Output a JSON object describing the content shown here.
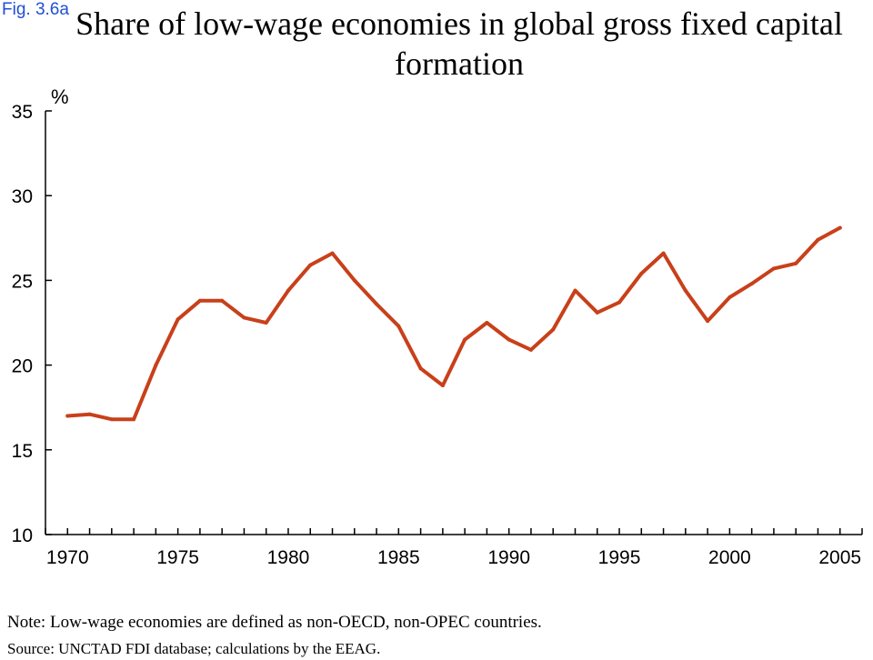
{
  "figure_label": "Fig. 3.6a",
  "note": "Note: Low-wage economies are defined as non-OECD, non-OPEC countries.",
  "source": "Source: UNCTAD FDI database; calculations by the EEAG.",
  "chart_data": {
    "type": "line",
    "title": "Share of low-wage economies in global gross fixed capital formation",
    "ylabel": "%",
    "xlabel": "",
    "ylim": [
      10,
      35
    ],
    "xlim": [
      1969,
      2006
    ],
    "yticks": [
      10,
      15,
      20,
      25,
      30,
      35
    ],
    "xticks": [
      1970,
      1975,
      1980,
      1985,
      1990,
      1995,
      2000,
      2005
    ],
    "grid": false,
    "color": "#c8401a",
    "x": [
      1970,
      1971,
      1972,
      1973,
      1974,
      1975,
      1976,
      1977,
      1978,
      1979,
      1980,
      1981,
      1982,
      1983,
      1984,
      1985,
      1986,
      1987,
      1988,
      1989,
      1990,
      1991,
      1992,
      1993,
      1994,
      1995,
      1996,
      1997,
      1998,
      1999,
      2000,
      2001,
      2002,
      2003,
      2004,
      2005
    ],
    "values": [
      17.0,
      17.1,
      16.8,
      16.8,
      20.0,
      22.7,
      23.8,
      23.8,
      22.8,
      22.5,
      24.4,
      25.9,
      26.6,
      25.0,
      23.6,
      22.3,
      19.8,
      18.8,
      21.5,
      22.5,
      21.5,
      20.9,
      22.1,
      24.4,
      23.1,
      23.7,
      25.4,
      26.6,
      24.4,
      22.6,
      24.0,
      24.8,
      25.7,
      26.0,
      27.4,
      28.1
    ]
  }
}
